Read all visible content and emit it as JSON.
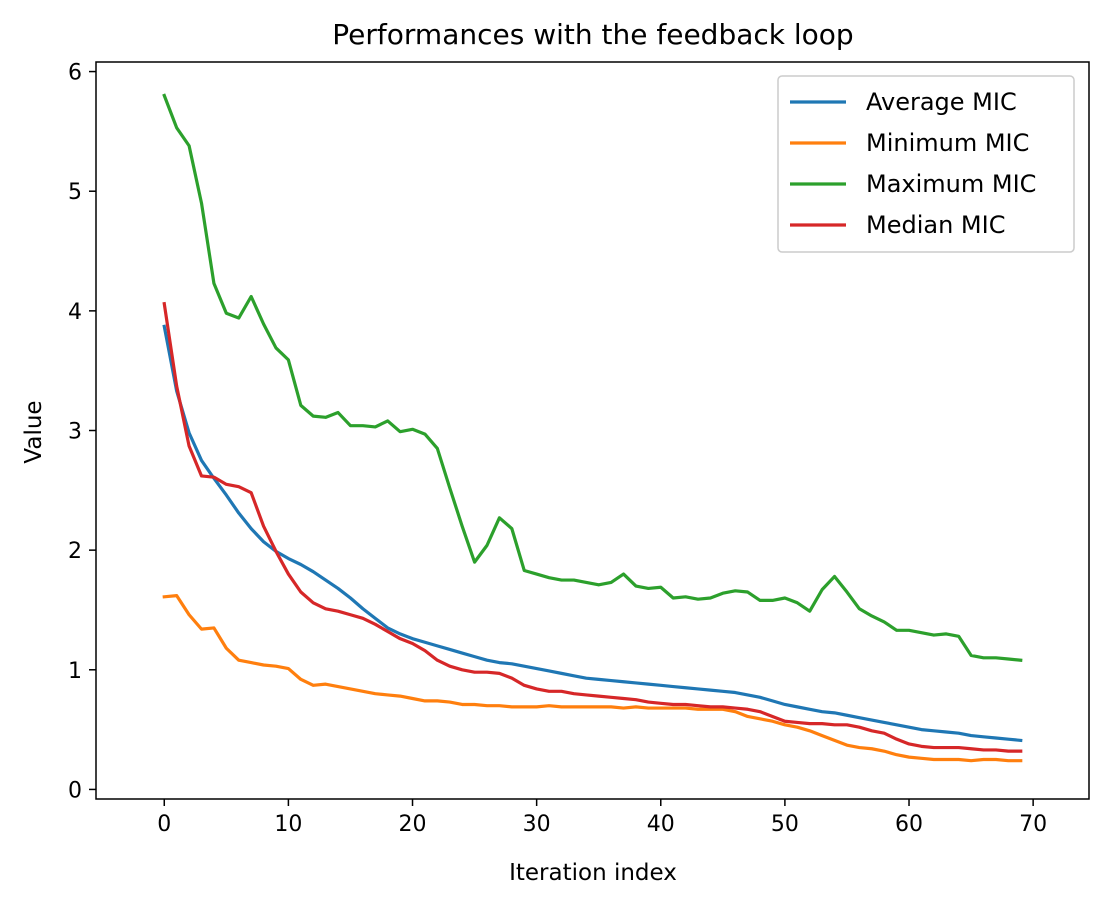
{
  "chart_data": {
    "type": "line",
    "title": "Performances with the feedback loop",
    "xlabel": "Iteration index",
    "ylabel": "Value",
    "xlim": [
      -5.5,
      74.5
    ],
    "ylim": [
      -0.08,
      6.08
    ],
    "xticks": [
      0,
      10,
      20,
      30,
      40,
      50,
      60,
      70
    ],
    "yticks": [
      0,
      1,
      2,
      3,
      4,
      5,
      6
    ],
    "grid": false,
    "legend_position": "top-right",
    "x": [
      0,
      1,
      2,
      3,
      4,
      5,
      6,
      7,
      8,
      9,
      10,
      11,
      12,
      13,
      14,
      15,
      16,
      17,
      18,
      19,
      20,
      21,
      22,
      23,
      24,
      25,
      26,
      27,
      28,
      29,
      30,
      31,
      32,
      33,
      34,
      35,
      36,
      37,
      38,
      39,
      40,
      41,
      42,
      43,
      44,
      45,
      46,
      47,
      48,
      49,
      50,
      51,
      52,
      53,
      54,
      55,
      56,
      57,
      58,
      59,
      60,
      61,
      62,
      63,
      64,
      65,
      66,
      67,
      68,
      69
    ],
    "series": [
      {
        "name": "Average MIC",
        "color": "#1f77b4",
        "values": [
          3.87,
          3.33,
          2.98,
          2.75,
          2.6,
          2.46,
          2.31,
          2.18,
          2.07,
          1.99,
          1.93,
          1.88,
          1.82,
          1.75,
          1.68,
          1.6,
          1.51,
          1.43,
          1.35,
          1.3,
          1.26,
          1.23,
          1.2,
          1.17,
          1.14,
          1.11,
          1.08,
          1.06,
          1.05,
          1.03,
          1.01,
          0.99,
          0.97,
          0.95,
          0.93,
          0.92,
          0.91,
          0.9,
          0.89,
          0.88,
          0.87,
          0.86,
          0.85,
          0.84,
          0.83,
          0.82,
          0.81,
          0.79,
          0.77,
          0.74,
          0.71,
          0.69,
          0.67,
          0.65,
          0.64,
          0.62,
          0.6,
          0.58,
          0.56,
          0.54,
          0.52,
          0.5,
          0.49,
          0.48,
          0.47,
          0.45,
          0.44,
          0.43,
          0.42,
          0.41
        ]
      },
      {
        "name": "Minimum MIC",
        "color": "#ff7f0e",
        "values": [
          1.61,
          1.62,
          1.46,
          1.34,
          1.35,
          1.18,
          1.08,
          1.06,
          1.04,
          1.03,
          1.01,
          0.92,
          0.87,
          0.88,
          0.86,
          0.84,
          0.82,
          0.8,
          0.79,
          0.78,
          0.76,
          0.74,
          0.74,
          0.73,
          0.71,
          0.71,
          0.7,
          0.7,
          0.69,
          0.69,
          0.69,
          0.7,
          0.69,
          0.69,
          0.69,
          0.69,
          0.69,
          0.68,
          0.69,
          0.68,
          0.68,
          0.68,
          0.68,
          0.67,
          0.67,
          0.67,
          0.65,
          0.61,
          0.59,
          0.57,
          0.54,
          0.52,
          0.49,
          0.45,
          0.41,
          0.37,
          0.35,
          0.34,
          0.32,
          0.29,
          0.27,
          0.26,
          0.25,
          0.25,
          0.25,
          0.24,
          0.25,
          0.25,
          0.24,
          0.24
        ]
      },
      {
        "name": "Maximum MIC",
        "color": "#2ca02c",
        "values": [
          5.8,
          5.53,
          5.38,
          4.9,
          4.23,
          3.98,
          3.94,
          4.12,
          3.89,
          3.69,
          3.59,
          3.21,
          3.12,
          3.11,
          3.15,
          3.04,
          3.04,
          3.03,
          3.08,
          2.99,
          3.01,
          2.97,
          2.85,
          2.52,
          2.2,
          1.9,
          2.04,
          2.27,
          2.18,
          1.83,
          1.8,
          1.77,
          1.75,
          1.75,
          1.73,
          1.71,
          1.73,
          1.8,
          1.7,
          1.68,
          1.69,
          1.6,
          1.61,
          1.59,
          1.6,
          1.64,
          1.66,
          1.65,
          1.58,
          1.58,
          1.6,
          1.56,
          1.49,
          1.67,
          1.78,
          1.65,
          1.51,
          1.45,
          1.4,
          1.33,
          1.33,
          1.31,
          1.29,
          1.3,
          1.28,
          1.12,
          1.1,
          1.1,
          1.09,
          1.08
        ]
      },
      {
        "name": "Median MIC",
        "color": "#d62728",
        "values": [
          4.06,
          3.37,
          2.87,
          2.62,
          2.61,
          2.55,
          2.53,
          2.48,
          2.2,
          1.99,
          1.8,
          1.65,
          1.56,
          1.51,
          1.49,
          1.46,
          1.43,
          1.38,
          1.32,
          1.26,
          1.22,
          1.16,
          1.08,
          1.03,
          1.0,
          0.98,
          0.98,
          0.97,
          0.93,
          0.87,
          0.84,
          0.82,
          0.82,
          0.8,
          0.79,
          0.78,
          0.77,
          0.76,
          0.75,
          0.73,
          0.72,
          0.71,
          0.71,
          0.7,
          0.69,
          0.69,
          0.68,
          0.67,
          0.65,
          0.61,
          0.57,
          0.56,
          0.55,
          0.55,
          0.54,
          0.54,
          0.52,
          0.49,
          0.47,
          0.42,
          0.38,
          0.36,
          0.35,
          0.35,
          0.35,
          0.34,
          0.33,
          0.33,
          0.32,
          0.32
        ]
      }
    ]
  }
}
